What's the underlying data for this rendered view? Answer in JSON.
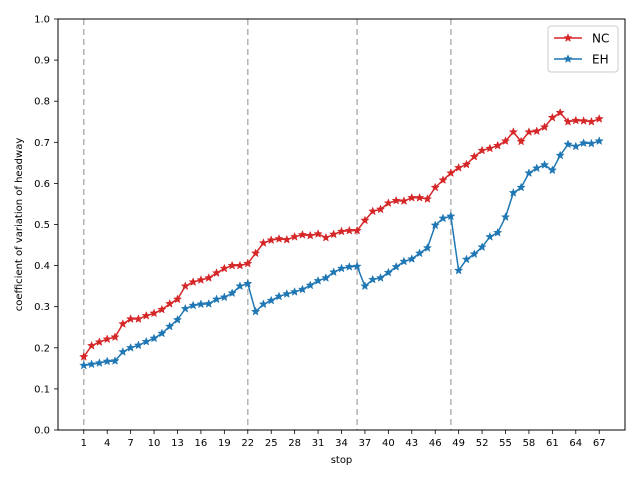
{
  "chart_data": {
    "type": "line",
    "title": "",
    "xlabel": "stop",
    "ylabel": "coefficient of variation of headway",
    "xlim": [
      -2.3,
      70.3
    ],
    "ylim": [
      0.0,
      1.0
    ],
    "x_ticks": [
      1,
      4,
      7,
      10,
      13,
      16,
      19,
      22,
      25,
      28,
      31,
      34,
      37,
      40,
      43,
      46,
      49,
      52,
      55,
      58,
      61,
      64,
      67
    ],
    "y_ticks": [
      0.0,
      0.1,
      0.2,
      0.3,
      0.4,
      0.5,
      0.6,
      0.7,
      0.8,
      0.9,
      1.0
    ],
    "y_tick_labels": [
      "0.0",
      "0.1",
      "0.2",
      "0.3",
      "0.4",
      "0.5",
      "0.6",
      "0.7",
      "0.8",
      "0.9",
      "1.0"
    ],
    "vlines": [
      1,
      22,
      36,
      48
    ],
    "grid": false,
    "legend_position": "top-right",
    "x": [
      1,
      2,
      3,
      4,
      5,
      6,
      7,
      8,
      9,
      10,
      11,
      12,
      13,
      14,
      15,
      16,
      17,
      18,
      19,
      20,
      21,
      22,
      23,
      24,
      25,
      26,
      27,
      28,
      29,
      30,
      31,
      32,
      33,
      34,
      35,
      36,
      37,
      38,
      39,
      40,
      41,
      42,
      43,
      44,
      45,
      46,
      47,
      48,
      49,
      50,
      51,
      52,
      53,
      54,
      55,
      56,
      57,
      58,
      59,
      60,
      61,
      62,
      63,
      64,
      65,
      66,
      67
    ],
    "series": [
      {
        "name": "NC",
        "color": "#d62728",
        "marker": "star",
        "values": [
          0.178,
          0.205,
          0.214,
          0.221,
          0.226,
          0.258,
          0.27,
          0.27,
          0.278,
          0.284,
          0.293,
          0.307,
          0.318,
          0.35,
          0.36,
          0.365,
          0.37,
          0.382,
          0.393,
          0.4,
          0.4,
          0.405,
          0.43,
          0.455,
          0.462,
          0.465,
          0.463,
          0.47,
          0.475,
          0.473,
          0.477,
          0.468,
          0.476,
          0.483,
          0.485,
          0.485,
          0.51,
          0.532,
          0.537,
          0.552,
          0.558,
          0.557,
          0.565,
          0.565,
          0.562,
          0.59,
          0.608,
          0.625,
          0.638,
          0.646,
          0.665,
          0.68,
          0.685,
          0.692,
          0.703,
          0.725,
          0.702,
          0.725,
          0.727,
          0.737,
          0.76,
          0.772,
          0.75,
          0.753,
          0.752,
          0.75,
          0.757
        ]
      },
      {
        "name": "EH",
        "color": "#1f77b4",
        "marker": "star",
        "values": [
          0.157,
          0.16,
          0.163,
          0.167,
          0.168,
          0.19,
          0.2,
          0.206,
          0.215,
          0.223,
          0.235,
          0.252,
          0.268,
          0.295,
          0.303,
          0.306,
          0.307,
          0.318,
          0.323,
          0.333,
          0.35,
          0.356,
          0.288,
          0.306,
          0.315,
          0.325,
          0.331,
          0.336,
          0.342,
          0.352,
          0.363,
          0.37,
          0.384,
          0.393,
          0.397,
          0.398,
          0.35,
          0.366,
          0.37,
          0.383,
          0.397,
          0.41,
          0.416,
          0.43,
          0.443,
          0.498,
          0.515,
          0.52,
          0.388,
          0.415,
          0.428,
          0.445,
          0.47,
          0.48,
          0.518,
          0.577,
          0.59,
          0.625,
          0.637,
          0.645,
          0.632,
          0.668,
          0.695,
          0.69,
          0.698,
          0.697,
          0.703
        ]
      }
    ]
  }
}
